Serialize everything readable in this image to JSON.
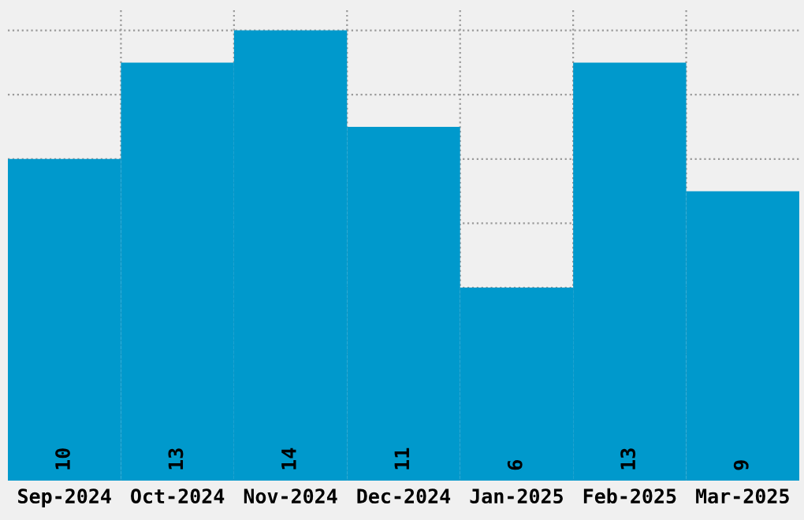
{
  "chart_data": {
    "type": "bar",
    "categories": [
      "Sep-2024",
      "Oct-2024",
      "Nov-2024",
      "Dec-2024",
      "Jan-2025",
      "Feb-2025",
      "Mar-2025"
    ],
    "values": [
      10,
      13,
      14,
      11,
      6,
      13,
      9
    ],
    "color": "#0099cc",
    "data_labels": true,
    "grid": true,
    "tick_labels": "x"
  }
}
